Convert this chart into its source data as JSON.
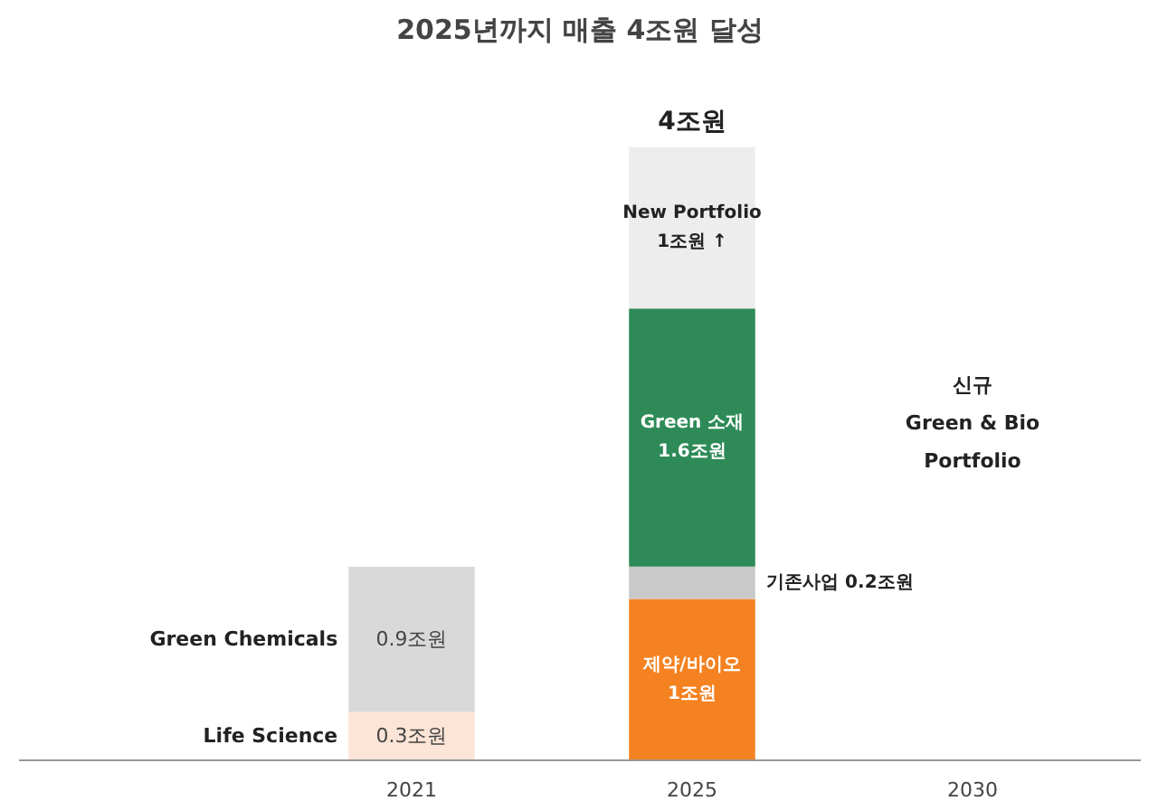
{
  "chart_data": {
    "type": "bar",
    "title": "2025년까지 매출 4조원 달성",
    "stacked": true,
    "categories": [
      "2021",
      "2025",
      "2030"
    ],
    "series": [
      {
        "name": "Life Science",
        "color": "#fce4d6",
        "values": [
          0.3,
          null,
          null
        ],
        "value_labels": [
          "0.3조원",
          null,
          null
        ]
      },
      {
        "name": "Green Chemicals",
        "color": "#d9d9d9",
        "values": [
          0.9,
          null,
          null
        ],
        "value_labels": [
          "0.9조원",
          null,
          null
        ]
      },
      {
        "name": "제약/바이오",
        "color": "#f58220",
        "values": [
          null,
          1,
          null
        ],
        "value_labels": [
          null,
          "1조원",
          null
        ]
      },
      {
        "name": "기존사업",
        "color": "#c9c9c9",
        "values": [
          null,
          0.2,
          null
        ],
        "value_labels": [
          null,
          "0.2조원",
          null
        ]
      },
      {
        "name": "Green 소재",
        "color": "#2e8b57",
        "values": [
          null,
          1.6,
          null
        ],
        "value_labels": [
          null,
          "1.6조원",
          null
        ]
      },
      {
        "name": "New Portfolio",
        "color": "#ededed",
        "values": [
          null,
          1,
          null
        ],
        "value_labels": [
          null,
          "1조원 ↑",
          null
        ]
      }
    ],
    "totals": [
      null,
      "4조원",
      null
    ],
    "annotations": [
      "신규\nGreen & Bio\nPortfolio"
    ],
    "grid": false
  }
}
